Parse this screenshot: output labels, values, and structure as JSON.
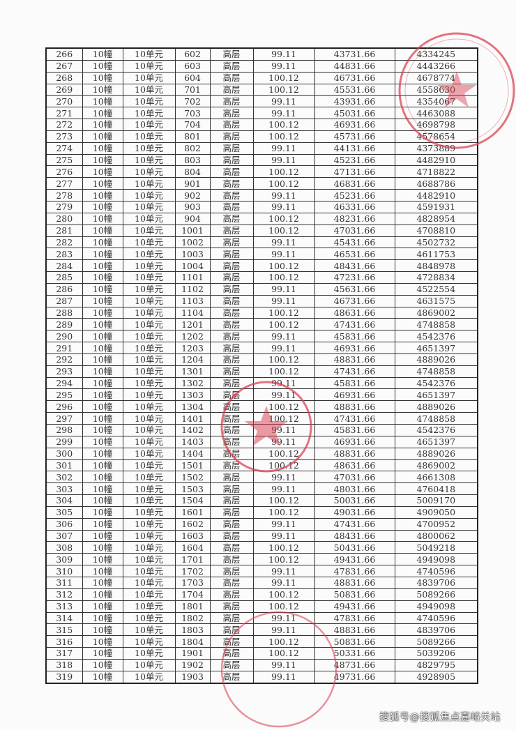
{
  "table": {
    "rows": [
      [
        "266",
        "10幢",
        "10单元",
        "602",
        "高层",
        "99.11",
        "43731.66",
        "4334245"
      ],
      [
        "267",
        "10幢",
        "10单元",
        "603",
        "高层",
        "99.11",
        "44831.66",
        "4443266"
      ],
      [
        "268",
        "10幢",
        "10单元",
        "604",
        "高层",
        "100.12",
        "46731.66",
        "4678774"
      ],
      [
        "269",
        "10幢",
        "10单元",
        "701",
        "高层",
        "100.12",
        "45531.66",
        "4558630"
      ],
      [
        "270",
        "10幢",
        "10单元",
        "702",
        "高层",
        "99.11",
        "43931.66",
        "4354067"
      ],
      [
        "271",
        "10幢",
        "10单元",
        "703",
        "高层",
        "99.11",
        "45031.66",
        "4463088"
      ],
      [
        "272",
        "10幢",
        "10单元",
        "704",
        "高层",
        "100.12",
        "46931.66",
        "4698798"
      ],
      [
        "273",
        "10幢",
        "10单元",
        "801",
        "高层",
        "100.12",
        "45731.66",
        "4578654"
      ],
      [
        "274",
        "10幢",
        "10单元",
        "802",
        "高层",
        "99.11",
        "44131.66",
        "4373889"
      ],
      [
        "275",
        "10幢",
        "10单元",
        "803",
        "高层",
        "99.11",
        "45231.66",
        "4482910"
      ],
      [
        "276",
        "10幢",
        "10单元",
        "804",
        "高层",
        "100.12",
        "47131.66",
        "4718822"
      ],
      [
        "277",
        "10幢",
        "10单元",
        "901",
        "高层",
        "100.12",
        "46831.66",
        "4688786"
      ],
      [
        "278",
        "10幢",
        "10单元",
        "902",
        "高层",
        "99.11",
        "45231.66",
        "4482910"
      ],
      [
        "279",
        "10幢",
        "10单元",
        "903",
        "高层",
        "99.11",
        "46331.66",
        "4591931"
      ],
      [
        "280",
        "10幢",
        "10单元",
        "904",
        "高层",
        "100.12",
        "48231.66",
        "4828954"
      ],
      [
        "281",
        "10幢",
        "10单元",
        "1001",
        "高层",
        "100.12",
        "47031.66",
        "4708810"
      ],
      [
        "282",
        "10幢",
        "10单元",
        "1002",
        "高层",
        "99.11",
        "45431.66",
        "4502732"
      ],
      [
        "283",
        "10幢",
        "10单元",
        "1003",
        "高层",
        "99.11",
        "46531.66",
        "4611753"
      ],
      [
        "284",
        "10幢",
        "10单元",
        "1004",
        "高层",
        "100.12",
        "48431.66",
        "4848978"
      ],
      [
        "285",
        "10幢",
        "10单元",
        "1101",
        "高层",
        "100.12",
        "47231.66",
        "4728834"
      ],
      [
        "286",
        "10幢",
        "10单元",
        "1102",
        "高层",
        "99.11",
        "45631.66",
        "4522554"
      ],
      [
        "287",
        "10幢",
        "10单元",
        "1103",
        "高层",
        "99.11",
        "46731.66",
        "4631575"
      ],
      [
        "288",
        "10幢",
        "10单元",
        "1104",
        "高层",
        "100.12",
        "48631.66",
        "4869002"
      ],
      [
        "289",
        "10幢",
        "10单元",
        "1201",
        "高层",
        "100.12",
        "47431.66",
        "4748858"
      ],
      [
        "290",
        "10幢",
        "10单元",
        "1202",
        "高层",
        "99.11",
        "45831.66",
        "4542376"
      ],
      [
        "291",
        "10幢",
        "10单元",
        "1203",
        "高层",
        "99.11",
        "46931.66",
        "4651397"
      ],
      [
        "292",
        "10幢",
        "10单元",
        "1204",
        "高层",
        "100.12",
        "48831.66",
        "4889026"
      ],
      [
        "293",
        "10幢",
        "10单元",
        "1301",
        "高层",
        "100.12",
        "47431.66",
        "4748858"
      ],
      [
        "294",
        "10幢",
        "10单元",
        "1302",
        "高层",
        "99.11",
        "45831.66",
        "4542376"
      ],
      [
        "295",
        "10幢",
        "10单元",
        "1303",
        "高层",
        "99.11",
        "46931.66",
        "4651397"
      ],
      [
        "296",
        "10幢",
        "10单元",
        "1304",
        "高层",
        "100.12",
        "48831.66",
        "4889026"
      ],
      [
        "297",
        "10幢",
        "10单元",
        "1401",
        "高层",
        "100.12",
        "47431.66",
        "4748858"
      ],
      [
        "298",
        "10幢",
        "10单元",
        "1402",
        "高层",
        "99.11",
        "45831.66",
        "4542376"
      ],
      [
        "299",
        "10幢",
        "10单元",
        "1403",
        "高层",
        "99.11",
        "46931.66",
        "4651397"
      ],
      [
        "300",
        "10幢",
        "10单元",
        "1404",
        "高层",
        "100.12",
        "48831.66",
        "4889026"
      ],
      [
        "301",
        "10幢",
        "10单元",
        "1501",
        "高层",
        "100.12",
        "48631.66",
        "4869002"
      ],
      [
        "302",
        "10幢",
        "10单元",
        "1502",
        "高层",
        "99.11",
        "47031.66",
        "4661308"
      ],
      [
        "303",
        "10幢",
        "10单元",
        "1503",
        "高层",
        "99.11",
        "48031.66",
        "4760418"
      ],
      [
        "304",
        "10幢",
        "10单元",
        "1504",
        "高层",
        "100.12",
        "50031.66",
        "5009170"
      ],
      [
        "305",
        "10幢",
        "10单元",
        "1601",
        "高层",
        "100.12",
        "49031.66",
        "4909050"
      ],
      [
        "306",
        "10幢",
        "10单元",
        "1602",
        "高层",
        "99.11",
        "47431.66",
        "4700952"
      ],
      [
        "307",
        "10幢",
        "10单元",
        "1603",
        "高层",
        "99.11",
        "48431.66",
        "4800062"
      ],
      [
        "308",
        "10幢",
        "10单元",
        "1604",
        "高层",
        "100.12",
        "50431.66",
        "5049218"
      ],
      [
        "309",
        "10幢",
        "10单元",
        "1701",
        "高层",
        "100.12",
        "49431.66",
        "4949098"
      ],
      [
        "310",
        "10幢",
        "10单元",
        "1702",
        "高层",
        "99.11",
        "47831.66",
        "4740596"
      ],
      [
        "311",
        "10幢",
        "10单元",
        "1703",
        "高层",
        "99.11",
        "48831.66",
        "4839706"
      ],
      [
        "312",
        "10幢",
        "10单元",
        "1704",
        "高层",
        "100.12",
        "50831.66",
        "5089266"
      ],
      [
        "313",
        "10幢",
        "10单元",
        "1801",
        "高层",
        "100.12",
        "49431.66",
        "4949098"
      ],
      [
        "314",
        "10幢",
        "10单元",
        "1802",
        "高层",
        "99.11",
        "47831.66",
        "4740596"
      ],
      [
        "315",
        "10幢",
        "10单元",
        "1803",
        "高层",
        "99.11",
        "48831.66",
        "4839706"
      ],
      [
        "316",
        "10幢",
        "10单元",
        "1804",
        "高层",
        "100.12",
        "50831.66",
        "5089266"
      ],
      [
        "317",
        "10幢",
        "10单元",
        "1901",
        "高层",
        "100.12",
        "50331.66",
        "5039206"
      ],
      [
        "318",
        "10幢",
        "10单元",
        "1902",
        "高层",
        "99.11",
        "48731.66",
        "4829795"
      ],
      [
        "319",
        "10幢",
        "10单元",
        "1903",
        "高层",
        "99.11",
        "49731.66",
        "4928905"
      ]
    ]
  },
  "stamp_color": "#d9384a",
  "watermark": "搜狐号@搜狐焦点嘉峪关站"
}
